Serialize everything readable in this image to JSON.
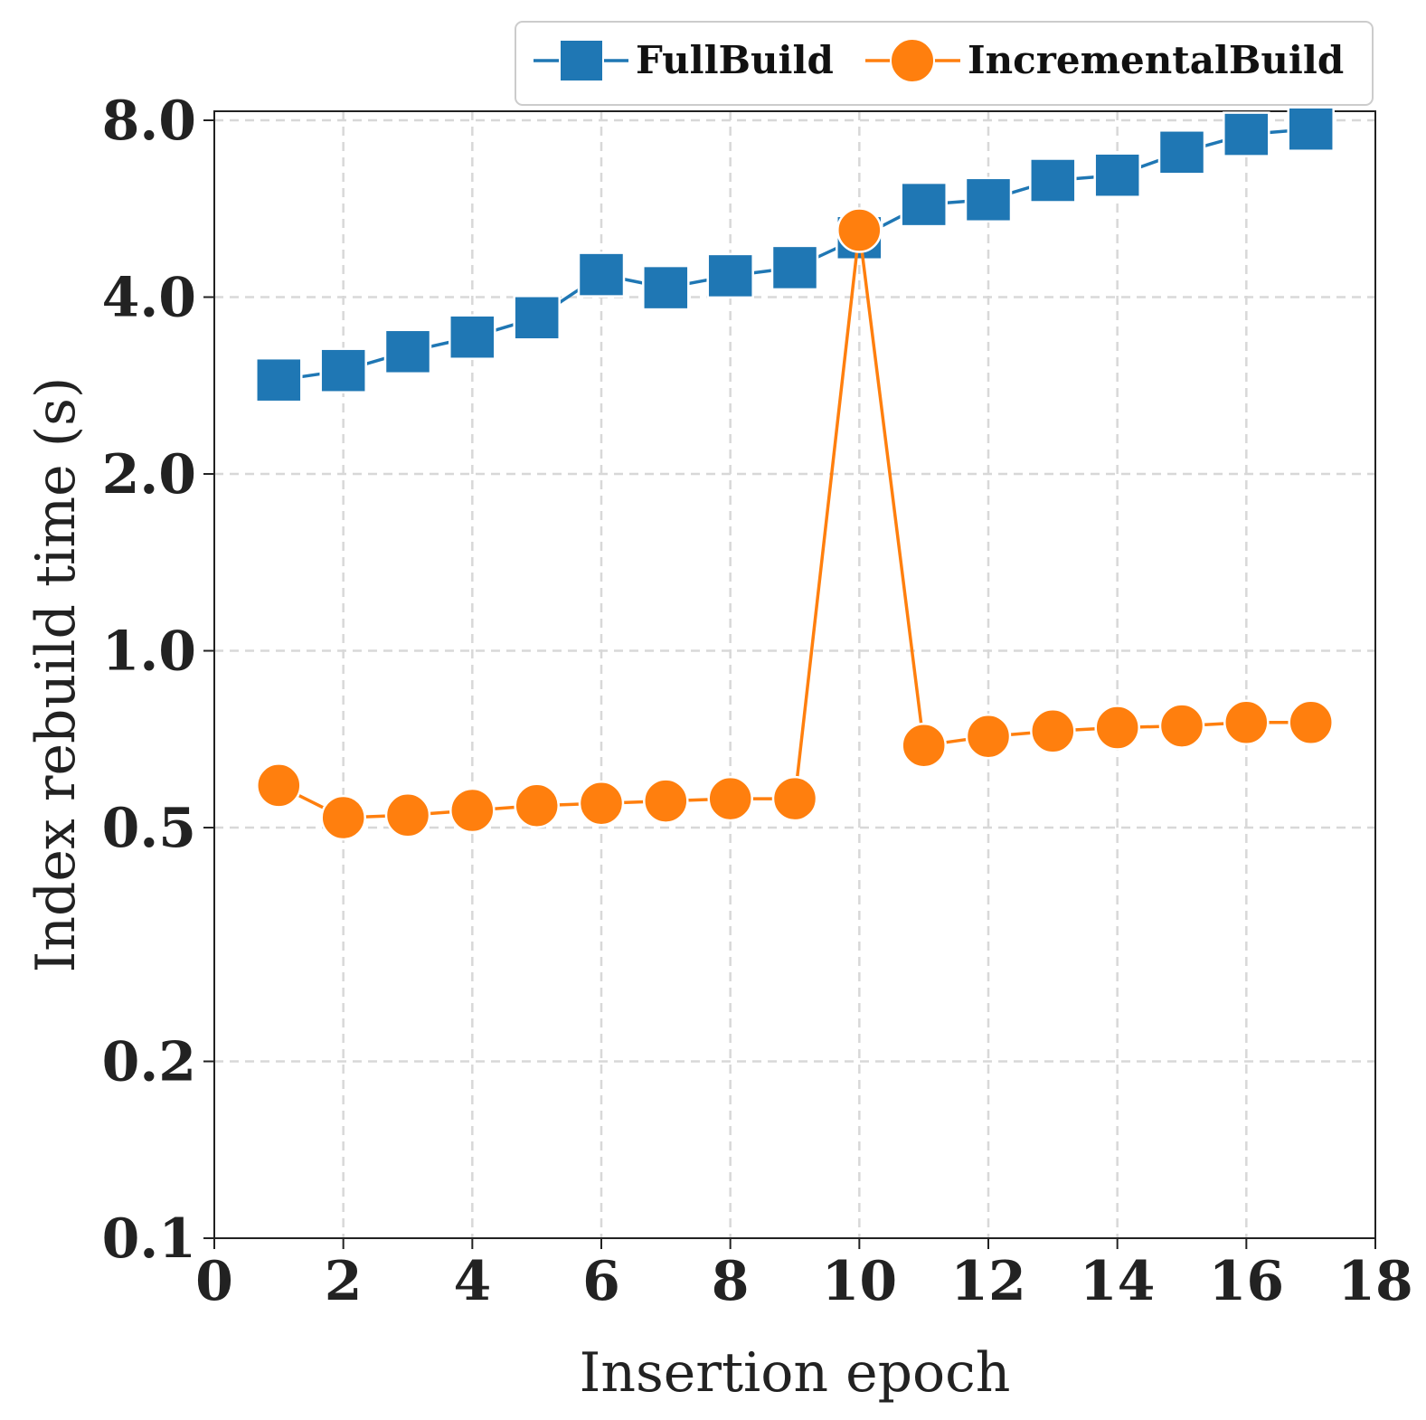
{
  "chart_data": {
    "type": "line",
    "title": "",
    "xlabel": "Insertion epoch",
    "ylabel": "Index rebuild time (s)",
    "xlim": [
      0,
      18
    ],
    "ylim": [
      0.1,
      8.0
    ],
    "yscale": "log",
    "grid": true,
    "legend_position": "top-right",
    "x_ticks": [
      0,
      2,
      4,
      6,
      8,
      10,
      12,
      14,
      16,
      18
    ],
    "x_tick_labels": [
      "0",
      "2",
      "4",
      "6",
      "8",
      "10",
      "12",
      "14",
      "16",
      "18"
    ],
    "y_ticks": [
      0.1,
      0.2,
      0.5,
      1.0,
      2.0,
      4.0,
      8.0
    ],
    "y_tick_labels": [
      "0.1",
      "0.2",
      "0.5",
      "1.0",
      "2.0",
      "4.0",
      "8.0"
    ],
    "x": [
      1,
      2,
      3,
      4,
      5,
      6,
      7,
      8,
      9,
      10,
      11,
      12,
      13,
      14,
      15,
      16,
      17
    ],
    "series": [
      {
        "name": "FullBuild",
        "color": "#1f77b4",
        "marker": "square",
        "values": [
          2.89,
          3.0,
          3.23,
          3.42,
          3.69,
          4.37,
          4.15,
          4.35,
          4.49,
          5.05,
          5.75,
          5.86,
          6.32,
          6.45,
          7.06,
          7.57,
          7.73
        ]
      },
      {
        "name": "IncrementalBuild",
        "color": "#ff7f0e",
        "marker": "circle",
        "values": [
          0.59,
          0.52,
          0.525,
          0.535,
          0.545,
          0.55,
          0.555,
          0.56,
          0.56,
          5.2,
          0.69,
          0.715,
          0.73,
          0.74,
          0.745,
          0.755,
          0.755
        ]
      }
    ]
  }
}
